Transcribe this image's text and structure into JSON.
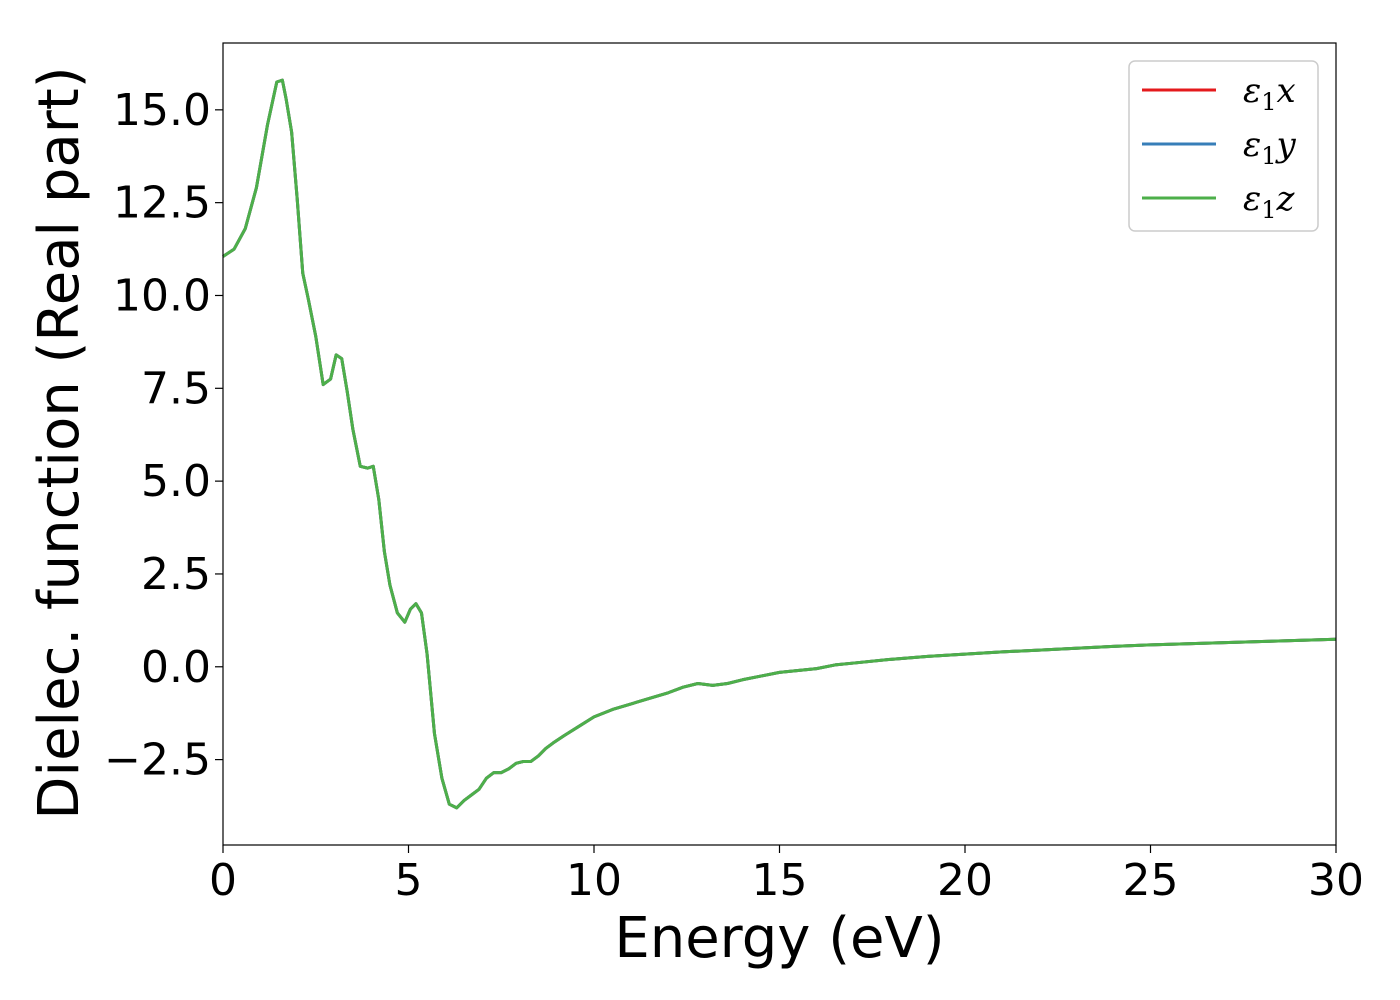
{
  "chart_data": {
    "type": "line",
    "title": "",
    "xlabel": "Energy (eV)",
    "ylabel": "Dielec. function (Real part)",
    "xlim": [
      0,
      30
    ],
    "ylim": [
      -4.8,
      16.8
    ],
    "xticks": [
      0,
      5,
      10,
      15,
      20,
      25,
      30
    ],
    "xtick_labels": [
      "0",
      "5",
      "10",
      "15",
      "20",
      "25",
      "30"
    ],
    "yticks": [
      -2.5,
      0.0,
      2.5,
      5.0,
      7.5,
      10.0,
      12.5,
      15.0
    ],
    "ytick_labels": [
      "−2.5",
      "0.0",
      "2.5",
      "5.0",
      "7.5",
      "10.0",
      "12.5",
      "15.0"
    ],
    "grid": false,
    "legend_position": "top-right",
    "x": [
      0.0,
      0.3,
      0.6,
      0.9,
      1.2,
      1.45,
      1.6,
      1.7,
      1.85,
      2.0,
      2.15,
      2.3,
      2.5,
      2.7,
      2.9,
      3.05,
      3.2,
      3.35,
      3.5,
      3.7,
      3.9,
      4.05,
      4.2,
      4.35,
      4.5,
      4.7,
      4.9,
      5.05,
      5.2,
      5.35,
      5.5,
      5.7,
      5.9,
      6.1,
      6.3,
      6.5,
      6.7,
      6.9,
      7.1,
      7.3,
      7.5,
      7.7,
      7.9,
      8.1,
      8.3,
      8.5,
      8.7,
      8.9,
      9.2,
      9.6,
      10.0,
      10.5,
      11.0,
      11.5,
      12.0,
      12.4,
      12.8,
      13.2,
      13.6,
      14.0,
      14.5,
      15.0,
      15.5,
      16.0,
      16.5,
      17.0,
      18.0,
      19.0,
      20.0,
      21.0,
      22.0,
      23.0,
      24.0,
      25.0,
      26.0,
      27.0,
      28.0,
      29.0,
      30.0
    ],
    "series": [
      {
        "name": "ε₁x",
        "color": "#e41a1c",
        "values": [
          11.05,
          11.25,
          11.8,
          12.9,
          14.6,
          15.75,
          15.8,
          15.3,
          14.4,
          12.6,
          10.6,
          9.9,
          8.9,
          7.6,
          7.75,
          8.4,
          8.3,
          7.4,
          6.4,
          5.4,
          5.35,
          5.4,
          4.5,
          3.1,
          2.2,
          1.45,
          1.2,
          1.55,
          1.7,
          1.45,
          0.35,
          -1.8,
          -3.0,
          -3.7,
          -3.8,
          -3.6,
          -3.45,
          -3.3,
          -3.0,
          -2.85,
          -2.85,
          -2.75,
          -2.6,
          -2.55,
          -2.55,
          -2.4,
          -2.2,
          -2.05,
          -1.85,
          -1.6,
          -1.35,
          -1.15,
          -1.0,
          -0.85,
          -0.7,
          -0.55,
          -0.45,
          -0.5,
          -0.45,
          -0.35,
          -0.25,
          -0.15,
          -0.1,
          -0.05,
          0.05,
          0.1,
          0.2,
          0.28,
          0.34,
          0.4,
          0.45,
          0.5,
          0.55,
          0.59,
          0.62,
          0.65,
          0.68,
          0.71,
          0.74
        ]
      },
      {
        "name": "ε₁y",
        "color": "#377eb8",
        "values": [
          11.05,
          11.25,
          11.8,
          12.9,
          14.6,
          15.75,
          15.8,
          15.3,
          14.4,
          12.6,
          10.6,
          9.9,
          8.9,
          7.6,
          7.75,
          8.4,
          8.3,
          7.4,
          6.4,
          5.4,
          5.35,
          5.4,
          4.5,
          3.1,
          2.2,
          1.45,
          1.2,
          1.55,
          1.7,
          1.45,
          0.35,
          -1.8,
          -3.0,
          -3.7,
          -3.8,
          -3.6,
          -3.45,
          -3.3,
          -3.0,
          -2.85,
          -2.85,
          -2.75,
          -2.6,
          -2.55,
          -2.55,
          -2.4,
          -2.2,
          -2.05,
          -1.85,
          -1.6,
          -1.35,
          -1.15,
          -1.0,
          -0.85,
          -0.7,
          -0.55,
          -0.45,
          -0.5,
          -0.45,
          -0.35,
          -0.25,
          -0.15,
          -0.1,
          -0.05,
          0.05,
          0.1,
          0.2,
          0.28,
          0.34,
          0.4,
          0.45,
          0.5,
          0.55,
          0.59,
          0.62,
          0.65,
          0.68,
          0.71,
          0.74
        ]
      },
      {
        "name": "ε₁z",
        "color": "#4daf4a",
        "values": [
          11.05,
          11.25,
          11.8,
          12.9,
          14.6,
          15.75,
          15.8,
          15.3,
          14.4,
          12.6,
          10.6,
          9.9,
          8.9,
          7.6,
          7.75,
          8.4,
          8.3,
          7.4,
          6.4,
          5.4,
          5.35,
          5.4,
          4.5,
          3.1,
          2.2,
          1.45,
          1.2,
          1.55,
          1.7,
          1.45,
          0.35,
          -1.8,
          -3.0,
          -3.7,
          -3.8,
          -3.6,
          -3.45,
          -3.3,
          -3.0,
          -2.85,
          -2.85,
          -2.75,
          -2.6,
          -2.55,
          -2.55,
          -2.4,
          -2.2,
          -2.05,
          -1.85,
          -1.6,
          -1.35,
          -1.15,
          -1.0,
          -0.85,
          -0.7,
          -0.55,
          -0.45,
          -0.5,
          -0.45,
          -0.35,
          -0.25,
          -0.15,
          -0.1,
          -0.05,
          0.05,
          0.1,
          0.2,
          0.28,
          0.34,
          0.4,
          0.45,
          0.5,
          0.55,
          0.59,
          0.62,
          0.65,
          0.68,
          0.71,
          0.74
        ]
      }
    ],
    "legend": [
      {
        "symbol": "ε",
        "sub": "1",
        "axis": "x"
      },
      {
        "symbol": "ε",
        "sub": "1",
        "axis": "y"
      },
      {
        "symbol": "ε",
        "sub": "1",
        "axis": "z"
      }
    ]
  }
}
